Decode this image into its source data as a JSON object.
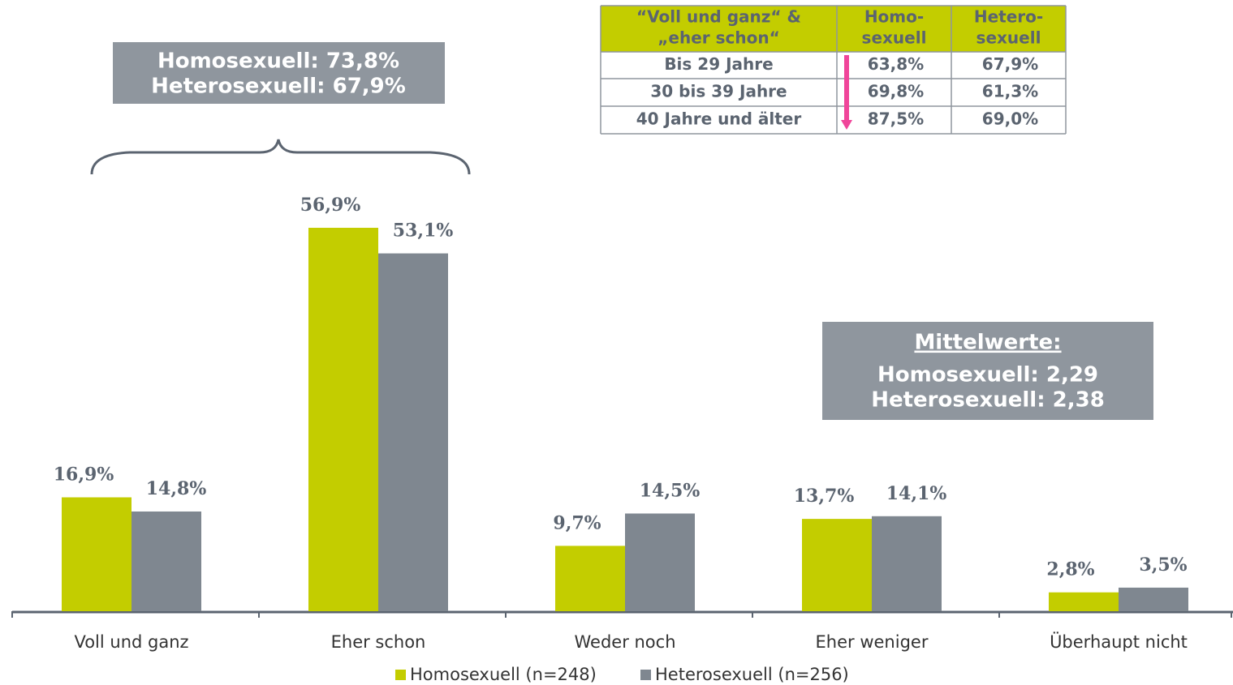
{
  "chart_data": {
    "type": "bar",
    "categories": [
      "Voll und ganz",
      "Eher schon",
      "Weder noch",
      "Eher weniger",
      "Überhaupt nicht"
    ],
    "series": [
      {
        "name": "Homosexuell (n=248)",
        "color": "#c3cd00",
        "values": [
          16.9,
          56.9,
          9.7,
          13.7,
          2.8
        ],
        "value_labels": [
          "16,9%",
          "56,9%",
          "9,7%",
          "13,7%",
          "2,8%"
        ]
      },
      {
        "name": "Heterosexuell (n=256)",
        "color": "#7f8790",
        "values": [
          14.8,
          53.1,
          14.5,
          14.1,
          3.5
        ],
        "value_labels": [
          "14,8%",
          "53,1%",
          "14,5%",
          "14,1%",
          "3,5%"
        ]
      }
    ],
    "annotations": [
      {
        "lines": [
          "Homosexuell: 73,8%",
          "Heterosexuell: 67,9%"
        ]
      },
      {
        "lines": [
          "Mittelwerte:",
          "Homosexuell: 2,29",
          "Heterosexuell: 2,38"
        ]
      }
    ],
    "table": {
      "header": [
        [
          "“Voll und ganz“ &",
          "„eher schon“"
        ],
        [
          "Homo-",
          "sexuell"
        ],
        [
          "Hetero-",
          "sexuell"
        ]
      ],
      "rows": [
        [
          "Bis 29 Jahre",
          "63,8%",
          "67,9%"
        ],
        [
          "30 bis 39 Jahre",
          "69,8%",
          "61,3%"
        ],
        [
          "40 Jahre und älter",
          "87,5%",
          "69,0%"
        ]
      ]
    }
  }
}
